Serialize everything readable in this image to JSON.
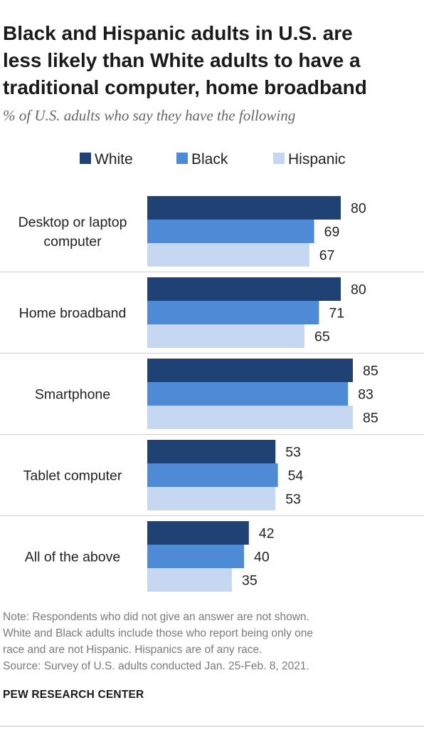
{
  "title_lines": [
    "Black and Hispanic adults in U.S. are",
    "less likely than White adults to have a",
    "traditional computer, home broadband"
  ],
  "subtitle": "% of U.S. adults who say they have the following",
  "note_lines": [
    "Note: Respondents who did not give an answer are not shown.",
    "White and Black adults include those who report being only one",
    "race and are not Hispanic. Hispanics are of any race.",
    "Source: Survey of U.S. adults conducted Jan. 25-Feb. 8, 2021."
  ],
  "brand": "PEW RESEARCH CENTER",
  "chart_data": {
    "type": "bar",
    "orientation": "horizontal",
    "categories": [
      [
        "Desktop or laptop",
        "computer"
      ],
      [
        "Home broadband"
      ],
      [
        "Smartphone"
      ],
      [
        "Tablet computer"
      ],
      [
        "All of the above"
      ]
    ],
    "series": [
      {
        "name": "White",
        "color": "#1f4173",
        "values": [
          80,
          80,
          85,
          53,
          42
        ]
      },
      {
        "name": "Black",
        "color": "#4f8ad6",
        "values": [
          69,
          71,
          83,
          54,
          40
        ]
      },
      {
        "name": "Hispanic",
        "color": "#c6d8f1",
        "values": [
          67,
          65,
          85,
          53,
          35
        ]
      }
    ],
    "legend_position": "top",
    "value_labels": true,
    "axis_visible": false,
    "grid": false,
    "group_separators": true,
    "xlim": [
      0,
      100
    ]
  }
}
